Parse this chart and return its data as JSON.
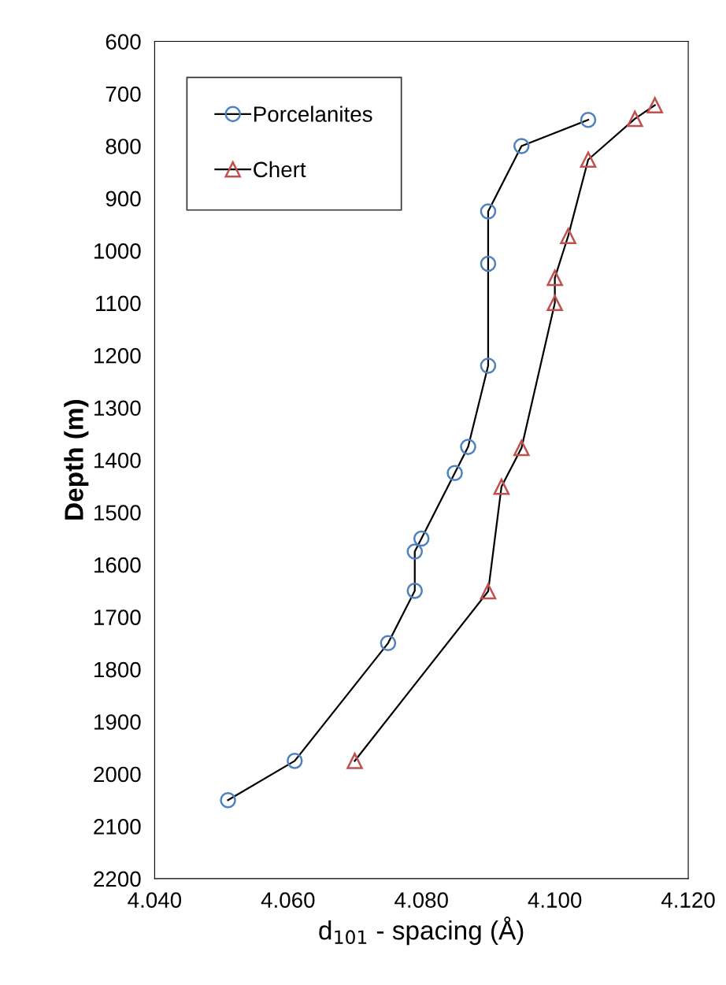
{
  "chart_data": {
    "type": "line",
    "xlabel": "d$_{101}$ - spacing (Å)",
    "ylabel": "Depth (m)",
    "xlim": [
      4.04,
      4.12
    ],
    "xticks": [
      {
        "value": 4.04,
        "label": "4.040"
      },
      {
        "value": 4.06,
        "label": "4.060"
      },
      {
        "value": 4.08,
        "label": "4.080"
      },
      {
        "value": 4.1,
        "label": "4.100"
      },
      {
        "value": 4.12,
        "label": "4.120"
      }
    ],
    "ylim": [
      2200,
      600
    ],
    "yticks": [
      600,
      700,
      800,
      900,
      1000,
      1100,
      1200,
      1300,
      1400,
      1500,
      1600,
      1700,
      1800,
      1900,
      2000,
      2100,
      2200
    ],
    "grid": false,
    "legend": "top left",
    "line_style": "solid",
    "series": [
      {
        "name": "Porcelanites",
        "color": "#4f81bd",
        "marker": "circle",
        "x": [
          4.105,
          4.095,
          4.09,
          4.09,
          4.09,
          4.087,
          4.085,
          4.08,
          4.079,
          4.079,
          4.075,
          4.061,
          4.051
        ],
        "values": [
          750,
          800,
          925,
          1025,
          1220,
          1375,
          1425,
          1550,
          1575,
          1650,
          1750,
          1975,
          2050
        ]
      },
      {
        "name": "Chert",
        "color": "#c0504d",
        "marker": "triangle",
        "x": [
          4.115,
          4.112,
          4.105,
          4.102,
          4.1,
          4.1,
          4.095,
          4.092,
          4.09,
          4.07
        ],
        "values": [
          722,
          748,
          826,
          972,
          1052,
          1100,
          1377,
          1451,
          1651,
          1975
        ]
      }
    ]
  }
}
